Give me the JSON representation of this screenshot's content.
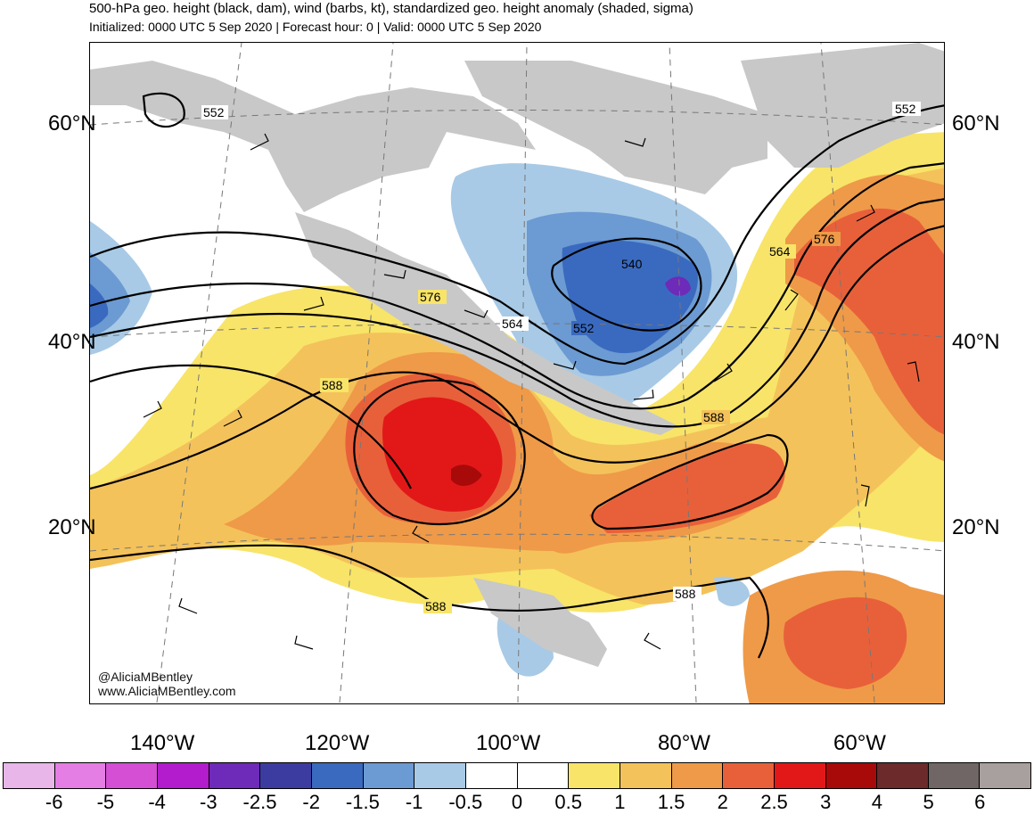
{
  "header": {
    "title": "500-hPa geo. height (black, dam), wind (barbs, kt), standardized geo. height anomaly (shaded, sigma)",
    "subtitle": "Initialized: 0000 UTC 5 Sep 2020 | Forecast hour: 0 | Valid: 0000 UTC 5 Sep 2020"
  },
  "map": {
    "lat_labels": [
      "60°N",
      "40°N",
      "20°N"
    ],
    "lon_labels": [
      "140°W",
      "120°W",
      "100°W",
      "80°W",
      "60°W"
    ],
    "contour_labels": [
      "552",
      "552",
      "540",
      "552",
      "564",
      "576",
      "564",
      "576",
      "588",
      "588",
      "588",
      "588"
    ],
    "credit": {
      "handle": "@AliciaMBentley",
      "website": "www.AliciaMBentley.com"
    },
    "colors": {
      "land": "#c8c8c8",
      "ocean": "#ffffff",
      "contour": "#000000",
      "border": "#555555"
    }
  },
  "colorbar": {
    "ticks": [
      "-6",
      "-5",
      "-4",
      "-3",
      "-2.5",
      "-2",
      "-1.5",
      "-1",
      "-0.5",
      "0",
      "0.5",
      "1",
      "1.5",
      "2",
      "2.5",
      "3",
      "4",
      "5",
      "6"
    ],
    "colors": [
      "#e8b6e8",
      "#e47ee4",
      "#d44fd4",
      "#b21ccc",
      "#6e2ab8",
      "#3c3ca0",
      "#3a6abf",
      "#6c9ad2",
      "#a8cae6",
      "#ffffff",
      "#ffffff",
      "#f8e468",
      "#f4c25a",
      "#ef9a48",
      "#e8603a",
      "#e21818",
      "#a80a0a",
      "#6c2a2a",
      "#706666",
      "#a89f9f"
    ]
  }
}
